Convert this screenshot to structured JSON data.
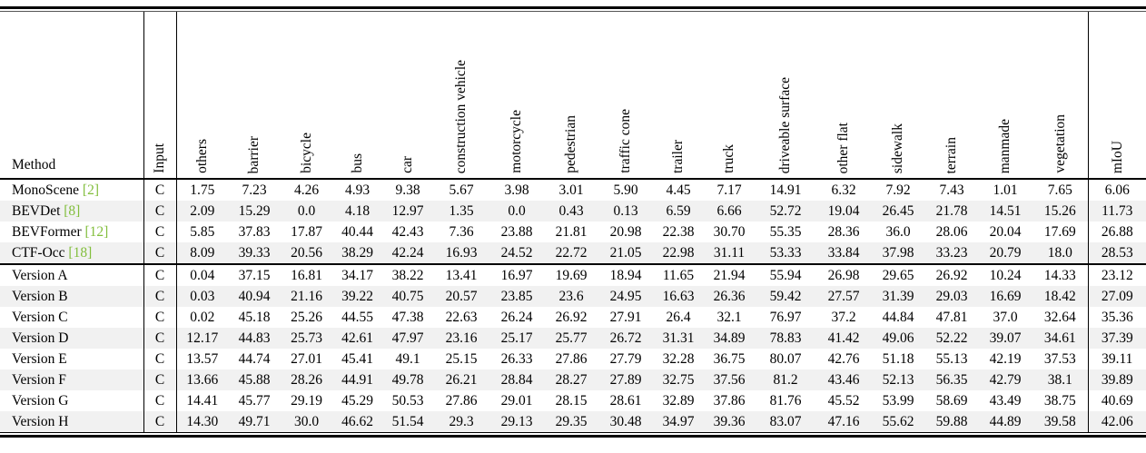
{
  "colors": {
    "citation_green": "#82BE3C",
    "row_stripe": "#F1F1F1",
    "text": "#000000"
  },
  "table": {
    "method_header": "Method",
    "rotated_headers": [
      "Input",
      "others",
      "barrier",
      "bicycle",
      "bus",
      "car",
      "construction vehicle",
      "motorcycle",
      "pedestrian",
      "traffic cone",
      "trailer",
      "truck",
      "driveable surface",
      "other flat",
      "sidewalk",
      "terrain",
      "manmade",
      "vegetation",
      "mIoU"
    ],
    "groups": [
      {
        "rows": [
          {
            "method": "MonoScene",
            "cite": "[2]",
            "input": "C",
            "values": [
              "1.75",
              "7.23",
              "4.26",
              "4.93",
              "9.38",
              "5.67",
              "3.98",
              "3.01",
              "5.90",
              "4.45",
              "7.17",
              "14.91",
              "6.32",
              "7.92",
              "7.43",
              "1.01",
              "7.65"
            ],
            "miou": "6.06"
          },
          {
            "method": "BEVDet",
            "cite": "[8]",
            "input": "C",
            "values": [
              "2.09",
              "15.29",
              "0.0",
              "4.18",
              "12.97",
              "1.35",
              "0.0",
              "0.43",
              "0.13",
              "6.59",
              "6.66",
              "52.72",
              "19.04",
              "26.45",
              "21.78",
              "14.51",
              "15.26"
            ],
            "miou": "11.73"
          },
          {
            "method": "BEVFormer",
            "cite": "[12]",
            "input": "C",
            "values": [
              "5.85",
              "37.83",
              "17.87",
              "40.44",
              "42.43",
              "7.36",
              "23.88",
              "21.81",
              "20.98",
              "22.38",
              "30.70",
              "55.35",
              "28.36",
              "36.0",
              "28.06",
              "20.04",
              "17.69"
            ],
            "miou": "26.88"
          },
          {
            "method": "CTF-Occ",
            "cite": "[18]",
            "input": "C",
            "values": [
              "8.09",
              "39.33",
              "20.56",
              "38.29",
              "42.24",
              "16.93",
              "24.52",
              "22.72",
              "21.05",
              "22.98",
              "31.11",
              "53.33",
              "33.84",
              "37.98",
              "33.23",
              "20.79",
              "18.0"
            ],
            "miou": "28.53"
          }
        ]
      },
      {
        "rows": [
          {
            "method": "Version A",
            "cite": "",
            "input": "C",
            "values": [
              "0.04",
              "37.15",
              "16.81",
              "34.17",
              "38.22",
              "13.41",
              "16.97",
              "19.69",
              "18.94",
              "11.65",
              "21.94",
              "55.94",
              "26.98",
              "29.65",
              "26.92",
              "10.24",
              "14.33"
            ],
            "miou": "23.12"
          },
          {
            "method": "Version B",
            "cite": "",
            "input": "C",
            "values": [
              "0.03",
              "40.94",
              "21.16",
              "39.22",
              "40.75",
              "20.57",
              "23.85",
              "23.6",
              "24.95",
              "16.63",
              "26.36",
              "59.42",
              "27.57",
              "31.39",
              "29.03",
              "16.69",
              "18.42"
            ],
            "miou": "27.09"
          },
          {
            "method": "Version C",
            "cite": "",
            "input": "C",
            "values": [
              "0.02",
              "45.18",
              "25.26",
              "44.55",
              "47.38",
              "22.63",
              "26.24",
              "26.92",
              "27.91",
              "26.4",
              "32.1",
              "76.97",
              "37.2",
              "44.84",
              "47.81",
              "37.0",
              "32.64"
            ],
            "miou": "35.36"
          },
          {
            "method": "Version D",
            "cite": "",
            "input": "C",
            "values": [
              "12.17",
              "44.83",
              "25.73",
              "42.61",
              "47.97",
              "23.16",
              "25.17",
              "25.77",
              "26.72",
              "31.31",
              "34.89",
              "78.83",
              "41.42",
              "49.06",
              "52.22",
              "39.07",
              "34.61"
            ],
            "miou": "37.39"
          },
          {
            "method": "Version E",
            "cite": "",
            "input": "C",
            "values": [
              "13.57",
              "44.74",
              "27.01",
              "45.41",
              "49.1",
              "25.15",
              "26.33",
              "27.86",
              "27.79",
              "32.28",
              "36.75",
              "80.07",
              "42.76",
              "51.18",
              "55.13",
              "42.19",
              "37.53"
            ],
            "miou": "39.11"
          },
          {
            "method": "Version F",
            "cite": "",
            "input": "C",
            "values": [
              "13.66",
              "45.88",
              "28.26",
              "44.91",
              "49.78",
              "26.21",
              "28.84",
              "28.27",
              "27.89",
              "32.75",
              "37.56",
              "81.2",
              "43.46",
              "52.13",
              "56.35",
              "42.79",
              "38.1"
            ],
            "miou": "39.89"
          },
          {
            "method": "Version G",
            "cite": "",
            "input": "C",
            "values": [
              "14.41",
              "45.77",
              "29.19",
              "45.29",
              "50.53",
              "27.86",
              "29.01",
              "28.15",
              "28.61",
              "32.89",
              "37.86",
              "81.76",
              "45.52",
              "53.99",
              "58.69",
              "43.49",
              "38.75"
            ],
            "miou": "40.69"
          },
          {
            "method": "Version H",
            "cite": "",
            "input": "C",
            "values": [
              "14.30",
              "49.71",
              "30.0",
              "46.62",
              "51.54",
              "29.3",
              "29.13",
              "29.35",
              "30.48",
              "34.97",
              "39.36",
              "83.07",
              "47.16",
              "55.62",
              "59.88",
              "44.89",
              "39.58"
            ],
            "miou": "42.06"
          }
        ]
      }
    ]
  }
}
